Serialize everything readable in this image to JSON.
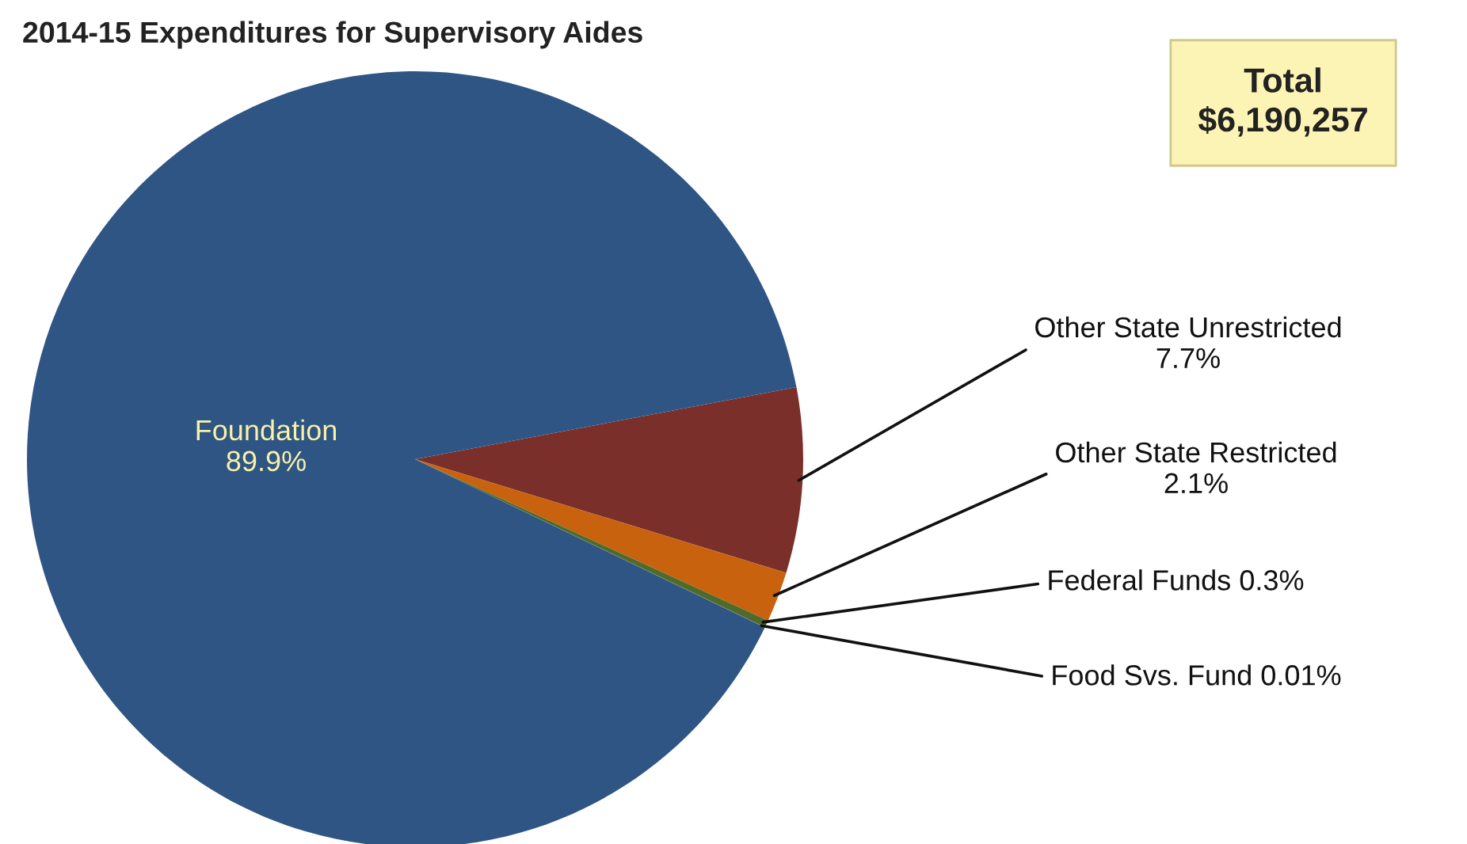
{
  "chart_data": {
    "type": "pie",
    "title": "2014-15 Expenditures for Supervisory Aides",
    "categories": [
      "Other State Unrestricted",
      "Other State Restricted",
      "Federal Funds",
      "Food Svs. Fund",
      "Foundation"
    ],
    "values": [
      7.7,
      2.1,
      0.3,
      0.01,
      89.9
    ],
    "colors": [
      "#7b2f2a",
      "#c8620f",
      "#4f6b2c",
      "#8a8a3a",
      "#2f5584"
    ],
    "value_labels": [
      "7.7%",
      "2.1%",
      "0.3%",
      "0.01%",
      "89.9%"
    ],
    "annotations": [
      "Total\n$6,190,257"
    ]
  }
}
